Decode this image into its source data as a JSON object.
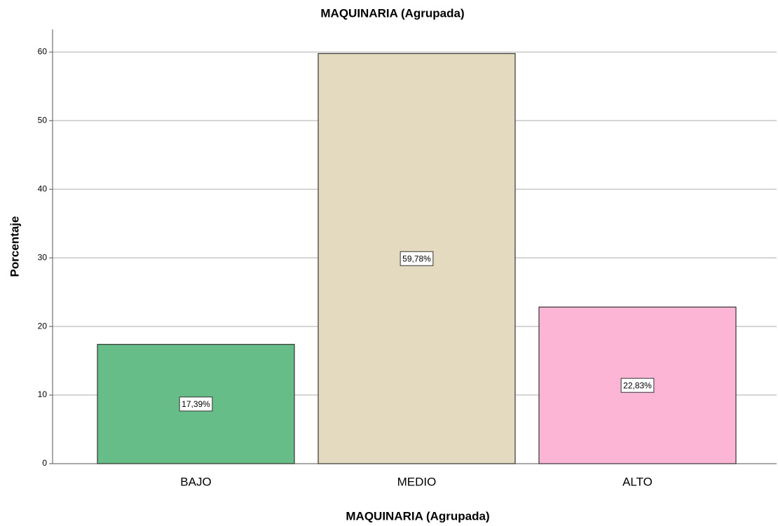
{
  "chart_data": {
    "type": "bar",
    "title": "MAQUINARIA (Agrupada)",
    "x_label": "MAQUINARIA (Agrupada)",
    "y_label": "Porcentaje",
    "categories": [
      "BAJO",
      "MEDIO",
      "ALTO"
    ],
    "values": [
      17.39,
      59.78,
      22.83
    ],
    "value_labels": [
      "17,39%",
      "59,78%",
      "22,83%"
    ],
    "colors": [
      "#66bd87",
      "#e3dac0",
      "#fdb5d6"
    ],
    "ylim": [
      0,
      63.3
    ],
    "yticks": [
      0,
      10,
      20,
      30,
      40,
      50,
      60
    ],
    "grid": true
  }
}
